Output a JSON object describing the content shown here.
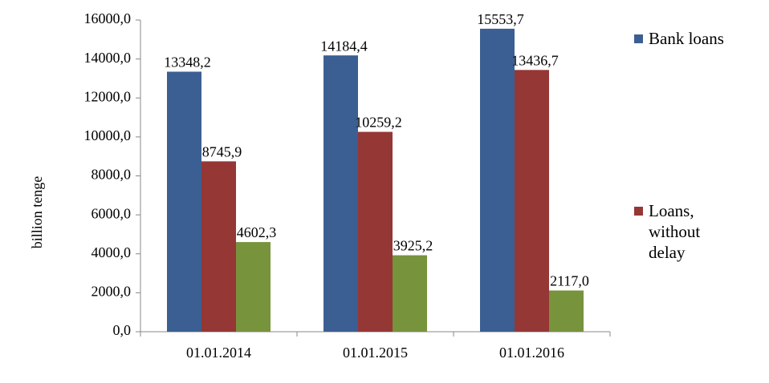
{
  "chart_data": {
    "type": "bar",
    "y_label": "billion tenge",
    "categories": [
      "01.01.2014",
      "01.01.2015",
      "01.01.2016"
    ],
    "series": [
      {
        "name": "Bank loans",
        "color": "#3b5f92",
        "values": [
          13348.2,
          14184.4,
          15553.7
        ],
        "value_labels": [
          "13348,2",
          "14184,4",
          "15553,7"
        ]
      },
      {
        "name": "Loans, without delay",
        "color": "#953735",
        "values": [
          8745.9,
          10259.2,
          13436.7
        ],
        "value_labels": [
          "8745,9",
          "10259,2",
          "13436,7"
        ]
      },
      {
        "color": "#77933c",
        "values": [
          4602.3,
          3925.2,
          2117.0
        ],
        "value_labels": [
          "4602,3",
          "3925,2",
          "2117,0"
        ]
      }
    ],
    "ylim": [
      0,
      16000
    ],
    "yticks": [
      {
        "value": 0,
        "label": "0,0"
      },
      {
        "value": 2000,
        "label": "2000,0"
      },
      {
        "value": 4000,
        "label": "4000,0"
      },
      {
        "value": 6000,
        "label": "6000,0"
      },
      {
        "value": 8000,
        "label": "8000,0"
      },
      {
        "value": 10000,
        "label": "10000,0"
      },
      {
        "value": 12000,
        "label": "12000,0"
      },
      {
        "value": 14000,
        "label": "14000,0"
      },
      {
        "value": 16000,
        "label": "16000,0"
      }
    ],
    "legend": "right"
  }
}
